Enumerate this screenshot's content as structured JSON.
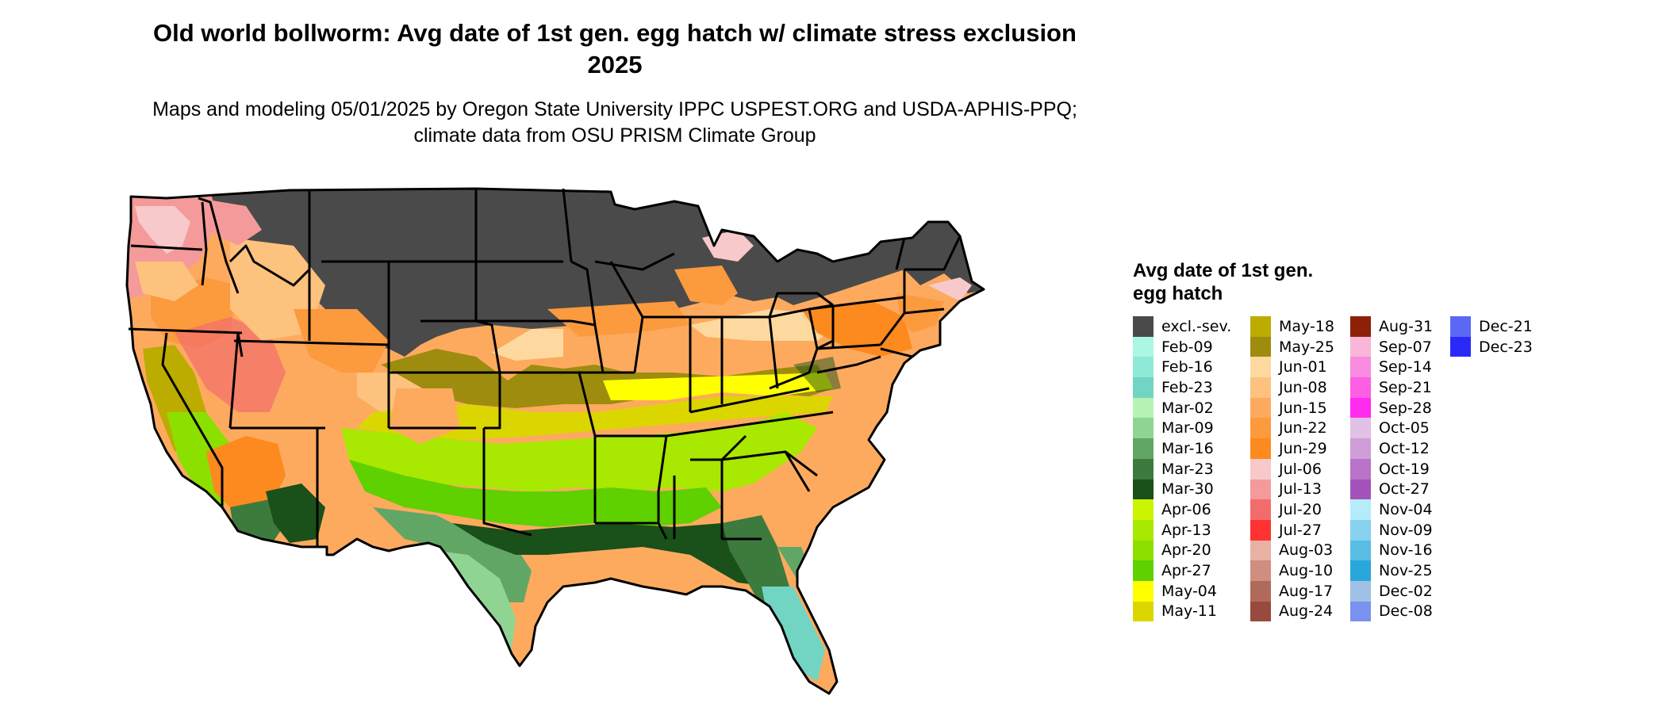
{
  "map": {
    "title": "Old world bollworm: Avg date of 1st gen. egg hatch w/ climate stress exclusion 2025",
    "subtitle": "Maps and modeling 05/01/2025 by Oregon State University IPPC USPEST.ORG and USDA-APHIS-PPQ; climate data from OSU PRISM Climate Group"
  },
  "legend": {
    "title": "Avg date of 1st gen. egg hatch",
    "items": [
      {
        "label": "excl.-sev.",
        "color": "#4a4a4a"
      },
      {
        "label": "Feb-09",
        "color": "#aaf7e3"
      },
      {
        "label": "Feb-16",
        "color": "#8eead6"
      },
      {
        "label": "Feb-23",
        "color": "#72d5c3"
      },
      {
        "label": "Mar-02",
        "color": "#b6f2b4"
      },
      {
        "label": "Mar-09",
        "color": "#8fd493"
      },
      {
        "label": "Mar-16",
        "color": "#62a665"
      },
      {
        "label": "Mar-23",
        "color": "#3d7a3d"
      },
      {
        "label": "Mar-30",
        "color": "#1a501a"
      },
      {
        "label": "Apr-06",
        "color": "#ccf400"
      },
      {
        "label": "Apr-13",
        "color": "#a9e800"
      },
      {
        "label": "Apr-20",
        "color": "#8ce000"
      },
      {
        "label": "Apr-27",
        "color": "#5fd000"
      },
      {
        "label": "May-04",
        "color": "#ffff00"
      },
      {
        "label": "May-11",
        "color": "#dcd600"
      },
      {
        "label": "May-18",
        "color": "#bcac00"
      },
      {
        "label": "May-25",
        "color": "#9e8c0f"
      },
      {
        "label": "Jun-01",
        "color": "#fdd9a0"
      },
      {
        "label": "Jun-08",
        "color": "#fcc27e"
      },
      {
        "label": "Jun-15",
        "color": "#fdaa5f"
      },
      {
        "label": "Jun-22",
        "color": "#fc9a3e"
      },
      {
        "label": "Jun-29",
        "color": "#fc8a1e"
      },
      {
        "label": "Jul-06",
        "color": "#f7c9ca"
      },
      {
        "label": "Jul-13",
        "color": "#f49a9a"
      },
      {
        "label": "Jul-20",
        "color": "#f26c6c"
      },
      {
        "label": "Jul-27",
        "color": "#ff3333"
      },
      {
        "label": "Aug-03",
        "color": "#e8b1a4"
      },
      {
        "label": "Aug-10",
        "color": "#cf8e80"
      },
      {
        "label": "Aug-17",
        "color": "#b06a5c"
      },
      {
        "label": "Aug-24",
        "color": "#974a3d"
      },
      {
        "label": "Aug-31",
        "color": "#8c2108"
      },
      {
        "label": "Sep-07",
        "color": "#f9b6da"
      },
      {
        "label": "Sep-14",
        "color": "#f98be0"
      },
      {
        "label": "Sep-21",
        "color": "#fd5fe4"
      },
      {
        "label": "Sep-28",
        "color": "#ff2cf0"
      },
      {
        "label": "Oct-05",
        "color": "#e2c1e6"
      },
      {
        "label": "Oct-12",
        "color": "#cf9dd7"
      },
      {
        "label": "Oct-19",
        "color": "#b973c9"
      },
      {
        "label": "Oct-27",
        "color": "#a453ba"
      },
      {
        "label": "Nov-04",
        "color": "#b6ecfa"
      },
      {
        "label": "Nov-09",
        "color": "#86d2f0"
      },
      {
        "label": "Nov-16",
        "color": "#59bde6"
      },
      {
        "label": "Nov-25",
        "color": "#2aa7da"
      },
      {
        "label": "Dec-02",
        "color": "#a0c0e6"
      },
      {
        "label": "Dec-08",
        "color": "#7a93ee"
      },
      {
        "label": "Dec-21",
        "color": "#5c68f3"
      },
      {
        "label": "Dec-23",
        "color": "#2a2af8"
      }
    ]
  }
}
